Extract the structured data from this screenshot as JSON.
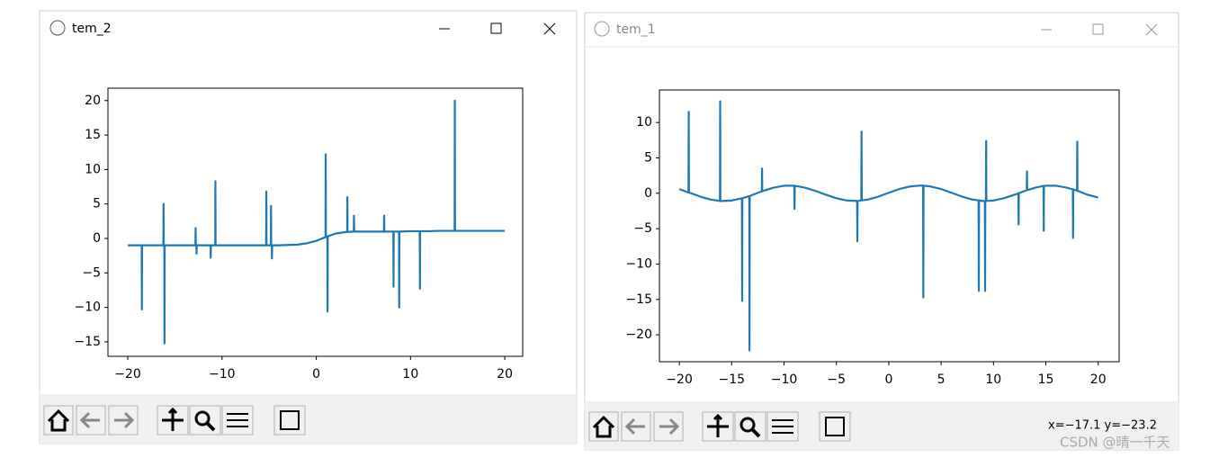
{
  "windows": [
    {
      "title": "tem_2"
    },
    {
      "title": "tem_1",
      "status": "x=−17.1 y=−23.2"
    }
  ],
  "watermark": "CSDN @晴一千天",
  "chart_data": [
    {
      "type": "line",
      "color": "#1f77b4",
      "xlim": [
        -22.1,
        21.9
      ],
      "ylim": [
        -17.1,
        21.8
      ],
      "xticks": [
        {
          "value": -20,
          "label": "−20"
        },
        {
          "value": -10,
          "label": "−10"
        },
        0,
        10,
        20
      ],
      "yticks": [
        {
          "value": -15,
          "label": "−15"
        },
        {
          "value": -10,
          "label": "−10"
        },
        {
          "value": -5,
          "label": "−5"
        },
        0,
        5,
        10,
        15,
        20
      ],
      "x": [
        -20,
        -19,
        -18.52,
        -18.5,
        -18.48,
        -18,
        -17,
        -16.22,
        -16.2,
        -16.18,
        -16.12,
        -16.1,
        -16.08,
        -15,
        -14,
        -13,
        -12.82,
        -12.8,
        -12.78,
        -12.72,
        -12.7,
        -12.68,
        -12,
        -11.22,
        -11.2,
        -11.18,
        -10.72,
        -10.7,
        -10.68,
        -10,
        -9,
        -8,
        -7,
        -6,
        -5.32,
        -5.3,
        -5.28,
        -4.82,
        -4.8,
        -4.78,
        -4.72,
        -4.7,
        -4.68,
        -4,
        -3,
        -2,
        -1,
        0,
        0.98,
        1.0,
        1.02,
        1.18,
        1.2,
        1.22,
        2,
        3,
        3.28,
        3.3,
        3.32,
        3.98,
        4.0,
        4.02,
        5,
        6,
        7,
        7.18,
        7.2,
        7.22,
        8.18,
        8.2,
        8.22,
        8.78,
        8.8,
        8.82,
        10,
        10.98,
        11.0,
        11.02,
        12,
        13,
        14,
        14.68,
        14.7,
        14.72,
        16,
        17,
        18,
        19,
        20
      ],
      "values": [
        -1.0,
        -1.0,
        -1.0,
        -10.3,
        -1.0,
        -1.0,
        -1.0,
        -1.0,
        5.0,
        -1.0,
        -1.0,
        -15.2,
        -1.0,
        -1.0,
        -1.0,
        -1.0,
        -1.0,
        1.5,
        -1.0,
        -1.0,
        -2.2,
        -1.0,
        -1.0,
        -1.0,
        -2.8,
        -1.0,
        -1.0,
        8.3,
        -1.0,
        -1.0,
        -1.0,
        -1.0,
        -1.0,
        -1.0,
        -1.0,
        6.8,
        -1.0,
        -1.0,
        4.7,
        -1.0,
        -1.0,
        -2.9,
        -1.0,
        -1.0,
        -0.95,
        -0.9,
        -0.7,
        -0.35,
        0.2,
        12.2,
        0.2,
        0.3,
        -10.6,
        0.3,
        0.7,
        0.9,
        0.95,
        6.0,
        0.95,
        1.0,
        3.3,
        1.0,
        1.0,
        1.0,
        1.0,
        1.0,
        3.3,
        1.0,
        1.0,
        -7.0,
        1.0,
        1.0,
        -10.0,
        1.0,
        1.05,
        1.05,
        -7.3,
        1.05,
        1.05,
        1.1,
        1.1,
        1.1,
        20.0,
        1.1,
        1.1,
        1.1,
        1.1,
        1.1,
        1.1
      ]
    },
    {
      "type": "line",
      "color": "#1f77b4",
      "xlim": [
        -21.9,
        22.0
      ],
      "ylim": [
        -23.8,
        14.6
      ],
      "xticks": [
        {
          "value": -20,
          "label": "−20"
        },
        {
          "value": -15,
          "label": "−15"
        },
        {
          "value": -10,
          "label": "−10"
        },
        {
          "value": -5,
          "label": "−5"
        },
        0,
        5,
        10,
        15,
        20
      ],
      "yticks": [
        {
          "value": -20,
          "label": "−20"
        },
        {
          "value": -15,
          "label": "−15"
        },
        {
          "value": -10,
          "label": "−10"
        },
        {
          "value": -5,
          "label": "−5"
        },
        0,
        5,
        10
      ],
      "x": [
        -20,
        -19.12,
        -19.1,
        -19.08,
        -19,
        -18,
        -17,
        -16.12,
        -16.1,
        -16.08,
        -16,
        -15,
        -14.02,
        -14.0,
        -13.98,
        -13.32,
        -13.3,
        -13.28,
        -13,
        -12.12,
        -12.1,
        -12.08,
        -12,
        -11,
        -10,
        -9.02,
        -9.0,
        -8.98,
        -8,
        -7,
        -6,
        -5,
        -4,
        -3.02,
        -3.0,
        -2.98,
        -2.62,
        -2.6,
        -2.58,
        -2,
        -1,
        0,
        1,
        2,
        3,
        3.28,
        3.3,
        3.32,
        4,
        5,
        6,
        7,
        8,
        8.58,
        8.6,
        8.62,
        9,
        9.18,
        9.2,
        9.22,
        9.28,
        9.3,
        9.32,
        10,
        11,
        12,
        12.38,
        12.4,
        12.42,
        13,
        13.18,
        13.2,
        13.22,
        14,
        14.78,
        14.8,
        14.82,
        15,
        16,
        17,
        17.58,
        17.6,
        17.62,
        17.98,
        18.0,
        18.02,
        19,
        20
      ],
      "values": [
        0.6,
        0.1,
        11.5,
        0.1,
        0.07,
        -0.47,
        -0.89,
        -1.08,
        13.0,
        -1.08,
        -1.09,
        -1.02,
        -0.7,
        -15.2,
        -0.7,
        -0.4,
        -22.2,
        -0.4,
        -0.21,
        0.28,
        3.5,
        0.28,
        0.34,
        0.8,
        1.07,
        1.07,
        -2.2,
        1.07,
        0.8,
        0.34,
        -0.21,
        -0.7,
        -1.02,
        -1.09,
        -6.8,
        -1.09,
        -1.0,
        8.7,
        -1.0,
        -0.89,
        -0.47,
        0.07,
        0.6,
        0.96,
        1.1,
        1.08,
        -14.7,
        1.08,
        0.96,
        0.6,
        0.07,
        -0.47,
        -0.89,
        -1.0,
        -13.8,
        -1.0,
        -1.09,
        -1.08,
        -13.8,
        -1.08,
        -1.08,
        7.4,
        -1.08,
        -1.02,
        -0.7,
        -0.21,
        0.0,
        -4.4,
        0.0,
        0.34,
        0.44,
        3.1,
        0.44,
        0.8,
        1.05,
        -5.3,
        1.05,
        1.07,
        1.07,
        0.8,
        0.55,
        -6.3,
        0.55,
        0.36,
        7.3,
        0.36,
        -0.21,
        -0.6
      ]
    }
  ]
}
